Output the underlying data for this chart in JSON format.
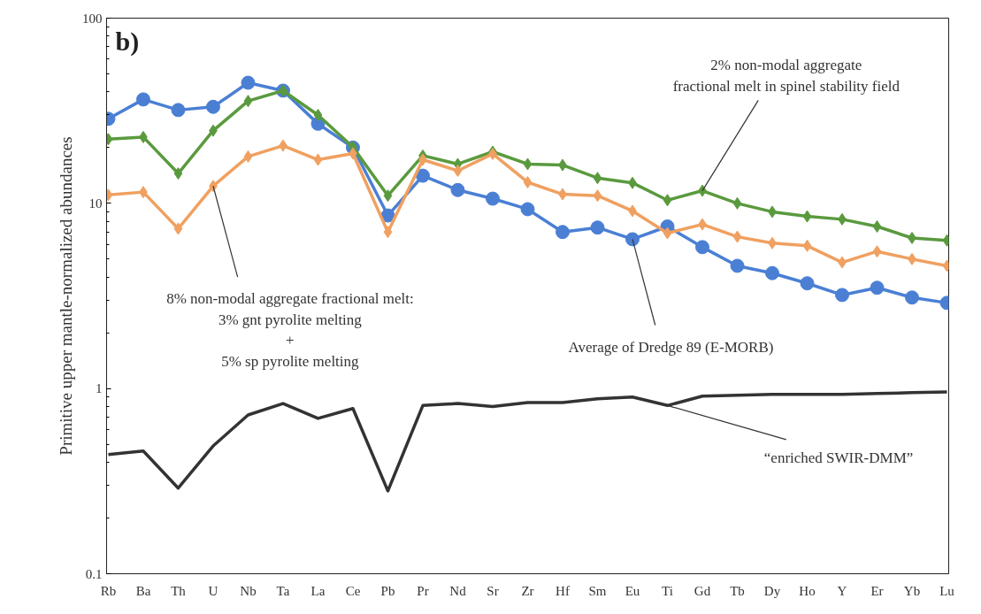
{
  "chart_data": {
    "type": "line",
    "title": "b)",
    "ylabel": "Primitive upper mantle-normalized abundances",
    "categories": [
      "Rb",
      "Ba",
      "Th",
      "U",
      "Nb",
      "Ta",
      "La",
      "Ce",
      "Pb",
      "Pr",
      "Nd",
      "Sr",
      "Zr",
      "Hf",
      "Sm",
      "Eu",
      "Ti",
      "Gd",
      "Tb",
      "Dy",
      "Ho",
      "Y",
      "Er",
      "Yb",
      "Lu"
    ],
    "series": [
      {
        "color": "#4a7fd4",
        "marker": "circle",
        "values": [
          28.6,
          36.4,
          31.9,
          33.2,
          44.8,
          40.6,
          26.9,
          20.0,
          8.6,
          14.1,
          11.8,
          10.6,
          9.3,
          7.0,
          7.4,
          6.4,
          7.5,
          5.8,
          4.6,
          4.2,
          3.7,
          3.2,
          3.5,
          3.1,
          2.9
        ]
      },
      {
        "color": "#5a9a3e",
        "marker": "diamond",
        "values": [
          22.2,
          22.8,
          14.5,
          24.7,
          35.7,
          40.6,
          30.0,
          20.1,
          11.0,
          18.1,
          16.3,
          19.0,
          16.3,
          16.1,
          13.7,
          12.9,
          10.4,
          11.7,
          10.0,
          9.0,
          8.5,
          8.2,
          7.5,
          6.5,
          6.3
        ]
      },
      {
        "color": "#f0a060",
        "marker": "diamond",
        "values": [
          11.1,
          11.5,
          7.3,
          12.4,
          17.9,
          20.5,
          17.2,
          18.6,
          7.0,
          17.2,
          15.0,
          18.5,
          13.0,
          11.2,
          11.0,
          9.1,
          6.9,
          7.7,
          6.6,
          6.1,
          5.9,
          4.8,
          5.5,
          5.0,
          4.6
        ]
      },
      {
        "color": "#333333",
        "marker": "none",
        "values": [
          0.44,
          0.46,
          0.29,
          0.49,
          0.72,
          0.83,
          0.69,
          0.78,
          0.28,
          0.81,
          0.83,
          0.8,
          0.84,
          0.84,
          0.88,
          0.9,
          0.81,
          0.91,
          0.92,
          0.93,
          0.93,
          0.93,
          0.94,
          0.95,
          0.96
        ]
      }
    ],
    "annotations": [
      {
        "text": "8% non-modal aggregate fractional melt:\n3% gnt pyrolite melting\n+\n5% sp pyrolite melting",
        "x": "U",
        "y": 12.4
      },
      {
        "text": "2% non-modal aggregate\nfractional melt in spinel stability field",
        "x": "Gd",
        "y": 11.7
      },
      {
        "text": "Average of Dredge 89 (E-MORB)",
        "x": "Eu",
        "y": 6.4
      },
      {
        "text": "“enriched SWIR-DMM”",
        "x": "Ti",
        "y": 0.81
      }
    ],
    "log": "y",
    "ylim": [
      0.1,
      100
    ],
    "yticks": [
      0.1,
      1,
      10,
      100
    ],
    "grid": false
  }
}
